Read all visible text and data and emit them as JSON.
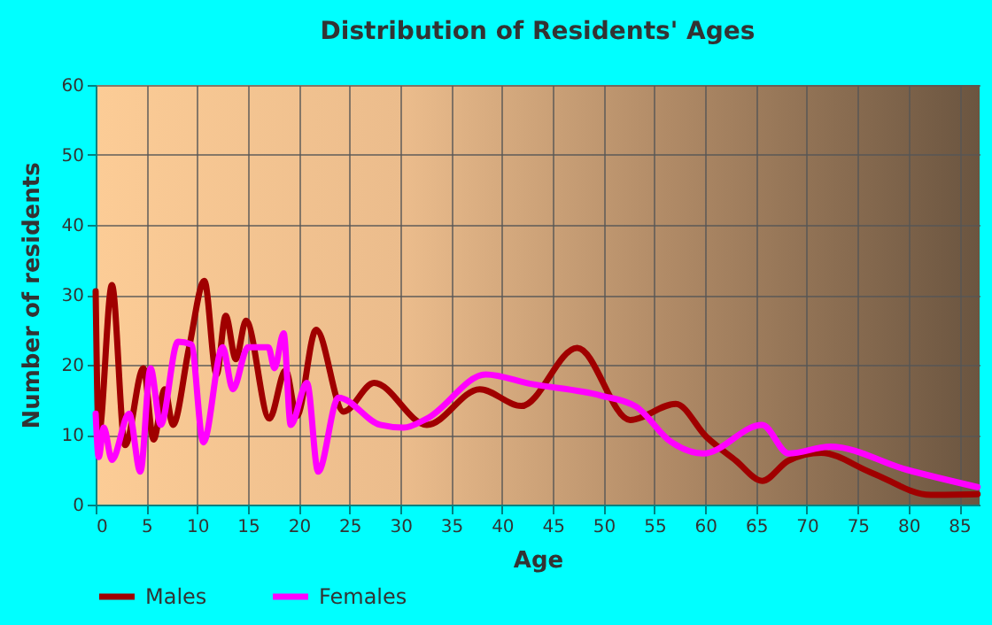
{
  "chart_data": {
    "type": "line",
    "title": "Distribution of Residents' Ages",
    "xlabel": "Age",
    "ylabel": "Number of residents",
    "xlim": [
      0,
      87
    ],
    "xticks": [
      0,
      5,
      10,
      15,
      20,
      25,
      30,
      35,
      40,
      45,
      50,
      55,
      60,
      65,
      70,
      75,
      80,
      85
    ],
    "ylim": [
      0,
      60
    ],
    "yticks": [
      0,
      10,
      20,
      30,
      40,
      50,
      60
    ],
    "grid": true,
    "legend": "bottom",
    "series": [
      {
        "name": "Males",
        "color": "#a00000",
        "x": [
          0,
          0.3,
          1.6,
          2.9,
          4.7,
          5.7,
          6.8,
          7.6,
          9.2,
          10.7,
          11.9,
          12.8,
          13.8,
          14.8,
          17.1,
          18.7,
          19.8,
          21.7,
          24.4,
          27.4,
          32.6,
          37.8,
          41.9,
          47.4,
          52.6,
          57.1,
          60.1,
          63,
          65.6,
          68.2,
          71.4,
          76.3,
          82.2,
          86.8
        ],
        "values": [
          30.5,
          10,
          31.4,
          8.5,
          19.5,
          9.3,
          16.5,
          11.4,
          22.5,
          32,
          18.6,
          27,
          20.8,
          26.3,
          12.3,
          19.2,
          12.7,
          25,
          13.3,
          17.4,
          11.4,
          16.5,
          14.1,
          22.4,
          12.1,
          14.4,
          9.7,
          6.3,
          3.4,
          6.3,
          7.4,
          4.6,
          1.4,
          1.5
        ]
      },
      {
        "name": "Females",
        "color": "#ff00ff",
        "x": [
          0,
          0.3,
          0.8,
          1.6,
          3.3,
          4.4,
          5.4,
          6.4,
          8.1,
          9.4,
          10.6,
          12.5,
          13.5,
          15,
          17,
          17.6,
          18.5,
          19.2,
          20.8,
          21.9,
          23.9,
          28,
          30.3,
          32.6,
          38.4,
          42.7,
          49.7,
          53.2,
          56.6,
          59.8,
          65.6,
          68.2,
          72.3,
          79.8,
          86.8
        ],
        "values": [
          13,
          6.8,
          11,
          6.4,
          13,
          4.7,
          19.5,
          11.4,
          23.3,
          22.9,
          8.9,
          22.5,
          16.5,
          22.5,
          22.5,
          19.5,
          24.5,
          11.4,
          17.4,
          4.7,
          15.3,
          11.4,
          11,
          12.3,
          18.6,
          17.3,
          15.6,
          14,
          9,
          7.3,
          11.4,
          7.3,
          8.3,
          5,
          2.5
        ]
      }
    ]
  }
}
